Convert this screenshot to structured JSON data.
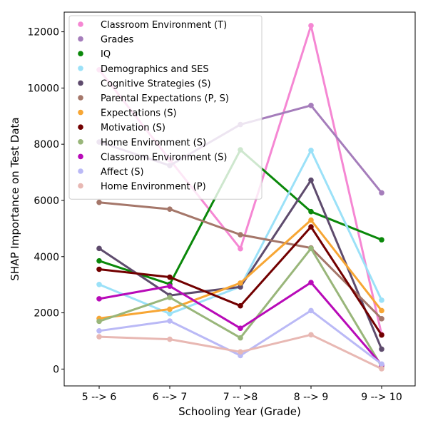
{
  "chart_data": {
    "type": "line",
    "xlabel": "Schooling Year (Grade)",
    "ylabel": "SHAP Importance on Test Data",
    "categories": [
      "5 --> 6",
      "6 --> 7",
      "7 -- >8",
      "8 --> 9",
      "9 --> 10"
    ],
    "ylim": [
      -600,
      12700
    ],
    "yticks": [
      0,
      2000,
      4000,
      6000,
      8000,
      10000,
      12000
    ],
    "grid": false,
    "legend_position": "top-left",
    "series": [
      {
        "name": "Classroom Environment (T)",
        "color": "#f587d3",
        "values": [
          10650,
          7450,
          4280,
          12220,
          1230
        ]
      },
      {
        "name": "Grades",
        "color": "#a57dbb",
        "values": [
          8080,
          7240,
          8700,
          9380,
          6270
        ]
      },
      {
        "name": "IQ",
        "color": "#0a880a",
        "values": [
          3850,
          3020,
          7800,
          5600,
          4600
        ]
      },
      {
        "name": "Demographics and SES",
        "color": "#9be1f8",
        "values": [
          3010,
          1970,
          2930,
          7780,
          2450
        ]
      },
      {
        "name": "Cognitive Strategies (S)",
        "color": "#5e4b6d",
        "values": [
          4290,
          2620,
          2920,
          6720,
          710
        ]
      },
      {
        "name": "Parental Expectations (P, S)",
        "color": "#a5776a",
        "values": [
          5930,
          5690,
          4780,
          4310,
          1790
        ]
      },
      {
        "name": "Expectations (S)",
        "color": "#f7a634",
        "values": [
          1800,
          2130,
          3060,
          5300,
          2080
        ]
      },
      {
        "name": "Motivation (S)",
        "color": "#720000",
        "values": [
          3550,
          3270,
          2250,
          5060,
          1210
        ]
      },
      {
        "name": "Home Environment (S)",
        "color": "#99b67a",
        "values": [
          1700,
          2550,
          1110,
          4290,
          90
        ]
      },
      {
        "name": "Classroom Environment (S)",
        "color": "#b80ab8",
        "values": [
          2500,
          2950,
          1450,
          3080,
          150
        ]
      },
      {
        "name": "Affect (S)",
        "color": "#bab9f6",
        "values": [
          1360,
          1710,
          480,
          2080,
          180
        ]
      },
      {
        "name": "Home Environment (P)",
        "color": "#e8b8b3",
        "values": [
          1150,
          1060,
          610,
          1220,
          10
        ]
      }
    ]
  }
}
